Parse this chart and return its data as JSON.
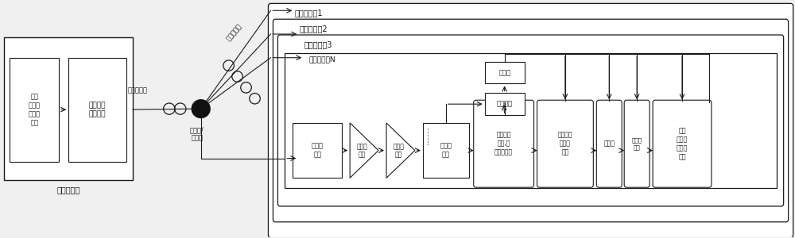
{
  "bg_color": "#f0f0f0",
  "box_facecolor": "#ffffff",
  "box_edgecolor": "#1a1a1a",
  "text_color": "#111111",
  "olt_label": "光线路终端",
  "olt_box1_text": "第二\n媒体接\n入控制\n模块",
  "olt_box2_text": "下行数据\n发射模块",
  "feeder_label": "馈线式光纤",
  "dist_label": "分布式光纤",
  "splitter_label": "光分路/\n合路器",
  "onu1_label": "光网络单元1",
  "onu2_label": "光网络单元2",
  "onu3_label": "光网络单元3",
  "onuN_label": "光网络单元N",
  "dots": "......",
  "label_photodet": "光电探\n测器",
  "label_tia": "跨导放\n大器",
  "label_lna": "线性放\n大器",
  "label_adc": "模数转\n换器",
  "label_cp": "去除循环\n前级,串\n并变换模块",
  "label_fft": "快速傅里\n叶变换\n模块",
  "label_eq": "均衡器",
  "label_feq": "频域均\n衡器",
  "label_mac": "第一\n媒体接\n入控制\n模块",
  "label_timer": "定时器",
  "label_sync": "同步模块"
}
